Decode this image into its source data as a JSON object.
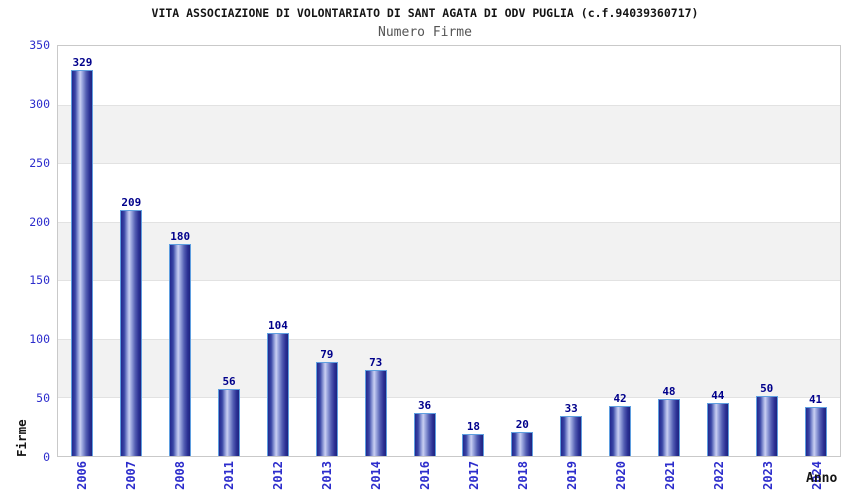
{
  "header": {
    "title": "VITA ASSOCIAZIONE DI VOLONTARIATO DI SANT AGATA DI ODV PUGLIA (c.f.94039360717)",
    "subtitle": "Numero Firme"
  },
  "chart_data": {
    "type": "bar",
    "title": "VITA ASSOCIAZIONE DI VOLONTARIATO DI SANT AGATA DI ODV PUGLIA (c.f.94039360717)",
    "subtitle": "Numero Firme",
    "xlabel": "Anno",
    "ylabel": "Firme",
    "categories": [
      "2006",
      "2007",
      "2008",
      "2011",
      "2012",
      "2013",
      "2014",
      "2016",
      "2017",
      "2018",
      "2019",
      "2020",
      "2021",
      "2022",
      "2023",
      "2024"
    ],
    "values": [
      329,
      209,
      180,
      56,
      104,
      79,
      73,
      36,
      18,
      20,
      33,
      42,
      48,
      44,
      50,
      41
    ],
    "ylim": [
      0,
      350
    ],
    "yticks": [
      350,
      300,
      250,
      200,
      150,
      100,
      50,
      0
    ],
    "grid": "horizontal gridlines every 50 with alternating white/gray bands",
    "legend": "none",
    "data_labels_shown": true,
    "colors": {
      "title_text": "#141414",
      "subtitle_text": "#555555",
      "axis_tick_text": "#2d2dcc",
      "value_label_text": "#00008b",
      "bar_dark": "#23288e",
      "bar_highlight": "#c9cff2",
      "bar_border": "#5f9fe0",
      "band_gray": "#f2f2f2",
      "plot_border": "#c9c9c9"
    }
  }
}
